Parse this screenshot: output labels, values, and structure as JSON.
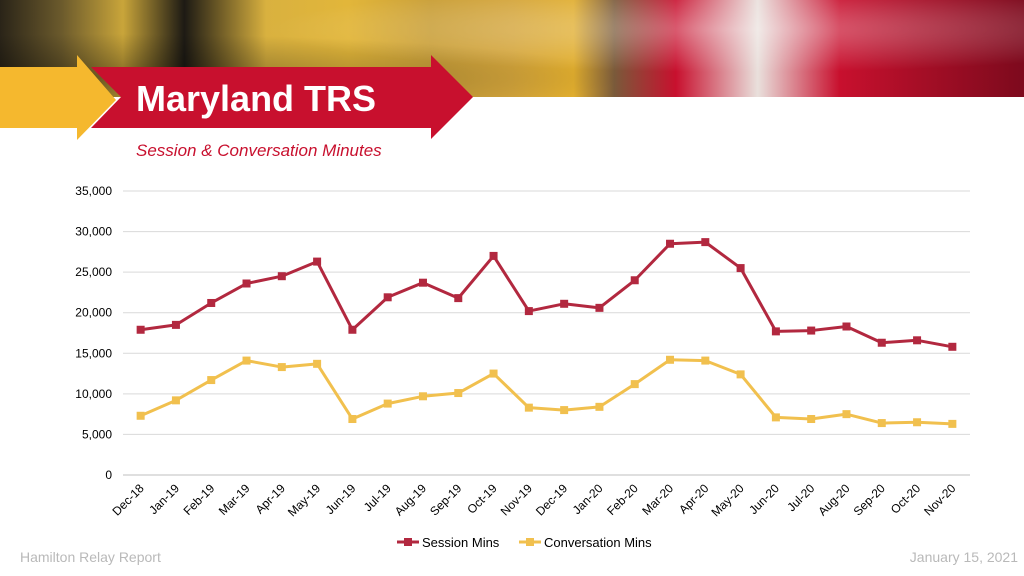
{
  "header": {
    "title": "Maryland TRS",
    "subtitle": "Session & Conversation Minutes"
  },
  "footer": {
    "left": "Hamilton Relay Report",
    "right": "January 15, 2021"
  },
  "colors": {
    "brand_red": "#c8102e",
    "brand_yellow": "#f5b82e",
    "session_series": "#b2283f",
    "conversation_series": "#f1c04e"
  },
  "chart_data": {
    "type": "line",
    "categories": [
      "Dec-18",
      "Jan-19",
      "Feb-19",
      "Mar-19",
      "Apr-19",
      "May-19",
      "Jun-19",
      "Jul-19",
      "Aug-19",
      "Sep-19",
      "Oct-19",
      "Nov-19",
      "Dec-19",
      "Jan-20",
      "Feb-20",
      "Mar-20",
      "Apr-20",
      "May-20",
      "Jun-20",
      "Jul-20",
      "Aug-20",
      "Sep-20",
      "Oct-20",
      "Nov-20"
    ],
    "series": [
      {
        "name": "Session Mins",
        "color": "#b2283f",
        "values": [
          17900,
          18500,
          21200,
          23600,
          24500,
          26300,
          17900,
          21900,
          23700,
          21800,
          27000,
          20200,
          21100,
          20600,
          24000,
          28500,
          28700,
          25500,
          17700,
          17800,
          18300,
          16300,
          16600,
          15800
        ]
      },
      {
        "name": "Conversation Mins",
        "color": "#f1c04e",
        "values": [
          7300,
          9200,
          11700,
          14100,
          13300,
          13700,
          6900,
          8800,
          9700,
          10100,
          12500,
          8300,
          8000,
          8400,
          11200,
          14200,
          14100,
          12400,
          7100,
          6900,
          7500,
          6400,
          6500,
          6300
        ]
      }
    ],
    "yticks": [
      "0",
      "5,000",
      "10,000",
      "15,000",
      "20,000",
      "25,000",
      "30,000",
      "35,000"
    ],
    "ylim": [
      0,
      35000
    ],
    "ystep": 5000,
    "grid": true,
    "legend_position": "bottom"
  }
}
